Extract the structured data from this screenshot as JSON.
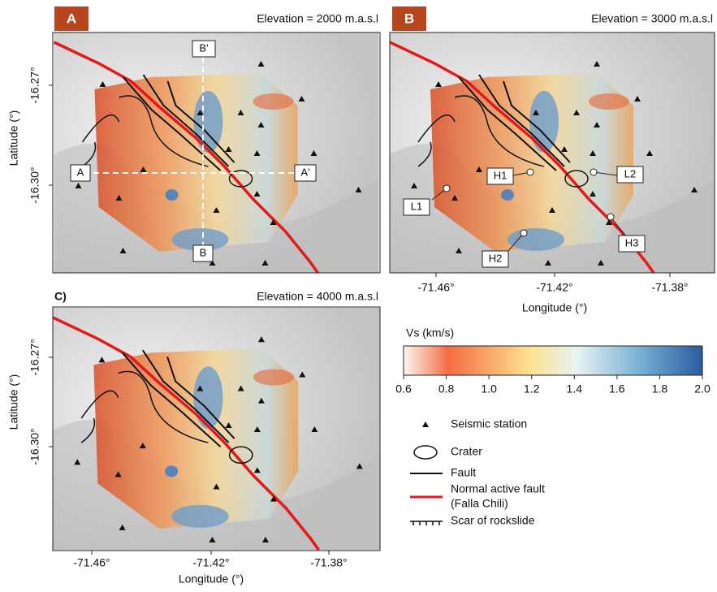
{
  "panels": [
    {
      "label": "A",
      "title": "Elevation = 2000 m.a.s.l",
      "markers": [
        "A",
        "A'",
        "B'",
        "B"
      ],
      "yticks": [
        "-16.27°",
        "-16.30°"
      ],
      "ylabel": "Latitude (°)"
    },
    {
      "label": "B",
      "title": "Elevation = 3000 m.a.s.l",
      "markers": [
        "H1",
        "L2",
        "L1",
        "H3",
        "H2"
      ],
      "xticks": [
        "-71.46°",
        "-71.42°",
        "-71.38°"
      ],
      "xlabel": "Longitude (°)"
    },
    {
      "label": "C)",
      "title": "Elevation = 4000 m.a.s.l",
      "yticks": [
        "-16.27°",
        "-16.30°"
      ],
      "ylabel": "Latitude (°)",
      "xticks": [
        "-71.46°",
        "-71.42°",
        "-71.38°"
      ],
      "xlabel": "Longitude (°)"
    }
  ],
  "colorbar": {
    "title": "Vs (km/s)",
    "ticks": [
      "0.6",
      "0.8",
      "1.0",
      "1.2",
      "1.4",
      "1.6",
      "1.8",
      "2.0"
    ]
  },
  "legend": [
    "Seismic station",
    "Crater",
    "Fault",
    [
      "Normal active fault",
      "(Falla Chili)"
    ],
    "Scar of rockslide"
  ]
}
